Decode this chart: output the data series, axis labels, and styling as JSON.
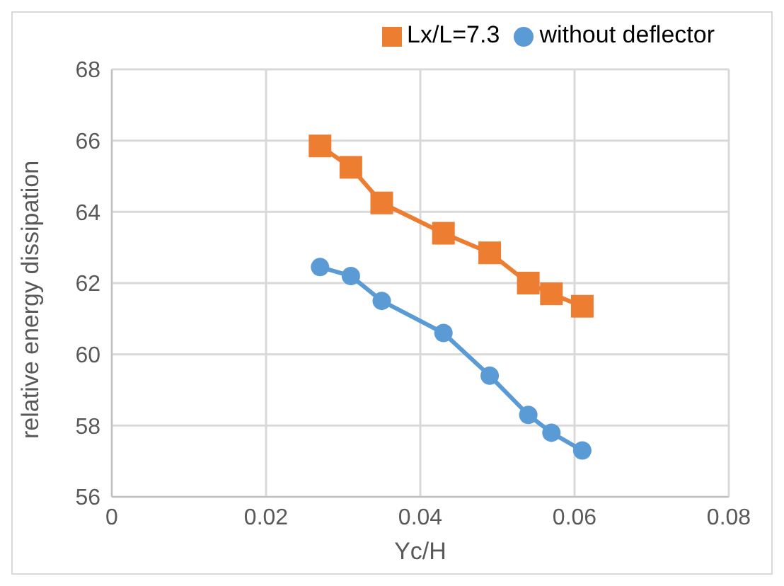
{
  "chart_data": {
    "type": "line",
    "xlabel": "Yc/H",
    "ylabel": "relative energy dissipation",
    "xlim": [
      0,
      0.08
    ],
    "xticks": [
      {
        "value": 0,
        "label": "0"
      },
      {
        "value": 0.02,
        "label": "0.02"
      },
      {
        "value": 0.04,
        "label": "0.04"
      },
      {
        "value": 0.06,
        "label": "0.06"
      },
      {
        "value": 0.08,
        "label": "0.08"
      }
    ],
    "ylim": [
      56,
      68
    ],
    "yticks": [
      56,
      58,
      60,
      62,
      64,
      66,
      68
    ],
    "grid": true,
    "legend": "top",
    "series": [
      {
        "name": "Lx/L=7.3",
        "color": "#ed7d31",
        "marker": "square",
        "x": [
          0.027,
          0.031,
          0.035,
          0.043,
          0.049,
          0.054,
          0.057,
          0.061
        ],
        "values": [
          65.85,
          65.25,
          64.25,
          63.4,
          62.85,
          62.0,
          61.7,
          61.35
        ]
      },
      {
        "name": "without deflector",
        "color": "#5b9bd5",
        "marker": "circle",
        "x": [
          0.027,
          0.031,
          0.035,
          0.043,
          0.049,
          0.054,
          0.057,
          0.061
        ],
        "values": [
          62.45,
          62.2,
          61.5,
          60.6,
          59.4,
          58.3,
          57.8,
          57.3
        ]
      }
    ]
  }
}
